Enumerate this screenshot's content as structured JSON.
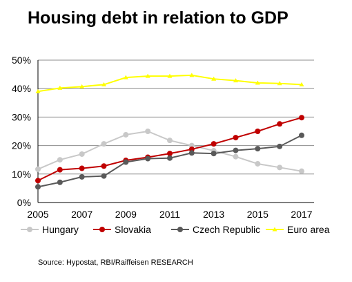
{
  "chart_data": {
    "type": "line",
    "title": "Housing debt in relation to GDP",
    "x": [
      2005,
      2006,
      2007,
      2008,
      2009,
      2010,
      2011,
      2012,
      2013,
      2014,
      2015,
      2016,
      2017
    ],
    "x_ticks": [
      "2005",
      "2007",
      "2009",
      "2011",
      "2013",
      "2015",
      "2017"
    ],
    "y_ticks": [
      "0%",
      "10%",
      "20%",
      "30%",
      "40%",
      "50%"
    ],
    "ylim": [
      0,
      50
    ],
    "grid": true,
    "legend_position": "bottom",
    "series": [
      {
        "name": "Hungary",
        "color": "#c8c8c8",
        "marker": "circle",
        "values": [
          11.7,
          15.0,
          17.0,
          20.6,
          23.8,
          25.0,
          21.8,
          20.0,
          18.2,
          16.1,
          13.6,
          12.3,
          11.0
        ]
      },
      {
        "name": "Slovakia",
        "color": "#c00000",
        "marker": "circle",
        "values": [
          7.7,
          11.5,
          12.0,
          12.8,
          14.8,
          15.9,
          17.2,
          18.7,
          20.6,
          22.8,
          25.0,
          27.6,
          29.8
        ]
      },
      {
        "name": "Czech Republic",
        "color": "#595959",
        "marker": "circle",
        "values": [
          5.5,
          7.1,
          9.0,
          9.3,
          14.2,
          15.4,
          15.6,
          17.4,
          17.2,
          18.3,
          18.9,
          19.7,
          23.6
        ]
      },
      {
        "name": "Euro area",
        "color": "#ffff00",
        "marker": "triangle",
        "values": [
          39.0,
          40.2,
          40.7,
          41.4,
          43.9,
          44.4,
          44.4,
          44.7,
          43.4,
          42.8,
          42.0,
          41.8,
          41.4
        ]
      }
    ]
  },
  "source": "Source: Hypostat, RBI/Raiffeisen RESEARCH"
}
